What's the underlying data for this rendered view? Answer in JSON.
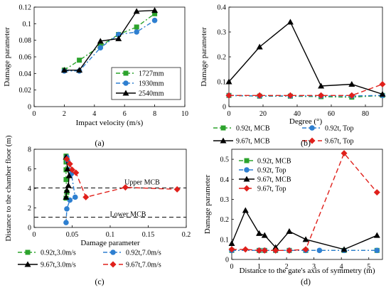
{
  "chart_data": [
    {
      "type": "line",
      "panel_label": "(a)",
      "xlabel": "Impact velocity (m/s)",
      "ylabel": "Damage parameter",
      "xlim": [
        0,
        10
      ],
      "ylim": [
        0,
        0.12
      ],
      "xticks": [
        0,
        2,
        4,
        6,
        8,
        10
      ],
      "yticks": [
        0,
        0.02,
        0.04,
        0.06,
        0.08,
        0.1,
        0.12
      ],
      "xtick_labels": [
        "0",
        "2",
        "4",
        "6",
        "8",
        "10"
      ],
      "ytick_labels": [
        "0",
        "0.02",
        "0.04",
        "0.06",
        "0.08",
        "0.1",
        "0.12"
      ],
      "legend_position": "bottom-right",
      "series": [
        {
          "name": "1727mm",
          "color": "#2ca32c",
          "marker": "square",
          "dash": "6,3,2,3",
          "x": [
            2,
            3,
            4.4,
            5.6,
            6.8,
            8
          ],
          "y": [
            0.044,
            0.056,
            0.073,
            0.087,
            0.096,
            0.112
          ]
        },
        {
          "name": "1930mm",
          "color": "#2e7fd0",
          "marker": "circle",
          "dash": "6,3,2,3",
          "x": [
            2,
            3,
            4.4,
            5.6,
            6.8,
            8
          ],
          "y": [
            0.043,
            0.043,
            0.071,
            0.087,
            0.09,
            0.104
          ]
        },
        {
          "name": "2540mm",
          "color": "#000000",
          "marker": "triangle",
          "dash": "",
          "x": [
            2,
            3,
            4.4,
            5.6,
            6.8,
            8
          ],
          "y": [
            0.044,
            0.044,
            0.079,
            0.082,
            0.115,
            0.116
          ]
        }
      ]
    },
    {
      "type": "line",
      "panel_label": "(b)",
      "xlabel": "Degree (°)",
      "ylabel": "Damage parameter",
      "xlim": [
        0,
        90
      ],
      "ylim": [
        0,
        0.4
      ],
      "xticks": [
        0,
        20,
        40,
        60,
        80
      ],
      "yticks": [
        0,
        0.1,
        0.2,
        0.3,
        0.4
      ],
      "xtick_labels": [
        "0",
        "20",
        "40",
        "60",
        "80"
      ],
      "ytick_labels": [
        "0",
        "0.1",
        "0.2",
        "0.3",
        "0.4"
      ],
      "legend_position": "below",
      "series": [
        {
          "name": "0.92t, MCB",
          "color": "#2ca32c",
          "marker": "square",
          "dash": "6,3,2,3",
          "x": [
            0,
            18,
            36,
            54,
            72,
            90
          ],
          "y": [
            0.045,
            0.042,
            0.042,
            0.04,
            0.038,
            0.045
          ]
        },
        {
          "name": "0.92t, Top",
          "color": "#2e7fd0",
          "marker": "circle",
          "dash": "6,3,2,3",
          "x": [
            0,
            18,
            36,
            54,
            72,
            90
          ],
          "y": [
            0.045,
            0.043,
            0.043,
            0.043,
            0.043,
            0.045
          ]
        },
        {
          "name": "9.67t, MCB",
          "color": "#000000",
          "marker": "triangle",
          "dash": "",
          "x": [
            0,
            18,
            36,
            54,
            72,
            90
          ],
          "y": [
            0.1,
            0.24,
            0.34,
            0.083,
            0.09,
            0.05
          ]
        },
        {
          "name": "9.67t, Top",
          "color": "#e0201b",
          "marker": "diamond",
          "dash": "7,4",
          "x": [
            0,
            18,
            36,
            54,
            72,
            90
          ],
          "y": [
            0.045,
            0.045,
            0.045,
            0.045,
            0.045,
            0.09
          ]
        }
      ]
    },
    {
      "type": "line",
      "panel_label": "(c)",
      "xlabel": "Damage parameter",
      "ylabel": "Distance to the chamber floor (m)",
      "xlim": [
        0,
        0.2
      ],
      "ylim": [
        0,
        8
      ],
      "xticks": [
        0,
        0.05,
        0.1,
        0.15,
        0.2
      ],
      "yticks": [
        0,
        2,
        4,
        6,
        8
      ],
      "xtick_labels": [
        "0",
        "0.05",
        "0.1",
        "0.15",
        "0.2"
      ],
      "ytick_labels": [
        "0",
        "2",
        "4",
        "6",
        "8"
      ],
      "legend_position": "below",
      "reference_lines": [
        {
          "label": "Upper MCB",
          "y": 4.05
        },
        {
          "label": "Lower MCB",
          "y": 1.05
        }
      ],
      "series": [
        {
          "name": "0.92t,3.0m/s",
          "color": "#2ca32c",
          "marker": "square",
          "dash": "6,3,2,3",
          "x": [
            0.042,
            0.042,
            0.042,
            0.042,
            0.043,
            0.042
          ],
          "y": [
            7.3,
            6.7,
            5.9,
            4.9,
            3.6,
            3.0
          ]
        },
        {
          "name": "0.92t,7.0m/s",
          "color": "#2e7fd0",
          "marker": "circle",
          "dash": "6,3,2,3",
          "x": [
            0.043,
            0.044,
            0.049,
            0.054,
            0.047,
            0.043,
            0.042
          ],
          "y": [
            7.2,
            6.8,
            5.5,
            3.1,
            2.8,
            1.9,
            0.5
          ]
        },
        {
          "name": "9.67t,3.0m/s",
          "color": "#000000",
          "marker": "triangle",
          "dash": "",
          "x": [
            0.042,
            0.044,
            0.046,
            0.045,
            0.043,
            0.042
          ],
          "y": [
            7.2,
            6.0,
            5.3,
            4.3,
            3.8,
            3.1
          ]
        },
        {
          "name": "9.67t,7.0m/s",
          "color": "#e0201b",
          "marker": "diamond",
          "dash": "7,4",
          "x": [
            0.043,
            0.047,
            0.05,
            0.055,
            0.068,
            0.12,
            0.188
          ],
          "y": [
            7.0,
            6.5,
            5.9,
            5.6,
            3.1,
            4.1,
            3.9
          ]
        }
      ]
    },
    {
      "type": "line",
      "panel_label": "(d)",
      "xlabel": "Distance to the gate's axis of symmetry (m)",
      "ylabel": "Damage parameter",
      "xlim": [
        0,
        5.5
      ],
      "ylim": [
        0,
        0.55
      ],
      "xticks": [
        0,
        1,
        2,
        3,
        4,
        5
      ],
      "yticks": [
        0,
        0.1,
        0.2,
        0.3,
        0.4,
        0.5
      ],
      "xtick_labels": [
        "0",
        "1",
        "2",
        "3",
        "4",
        "5"
      ],
      "ytick_labels": [
        "0",
        "0.1",
        "0.2",
        "0.3",
        "0.4",
        "0.5"
      ],
      "legend_position": "top-left",
      "series": [
        {
          "name": "0.92t, MCB",
          "color": "#2ca32c",
          "marker": "square",
          "dash": "6,3,2,3",
          "x": [
            0,
            1.0,
            1.2,
            1.6,
            2.1,
            2.7,
            4.1,
            5.3
          ],
          "y": [
            0.045,
            0.045,
            0.045,
            0.045,
            0.045,
            0.045,
            0.045,
            0.045
          ]
        },
        {
          "name": "0.92t, Top",
          "color": "#2e7fd0",
          "marker": "circle",
          "dash": "6,3,2,3",
          "x": [
            0,
            1.0,
            1.2,
            1.6,
            2.1,
            2.7,
            3.2,
            4.1,
            5.3
          ],
          "y": [
            0.045,
            0.045,
            0.045,
            0.045,
            0.045,
            0.045,
            0.045,
            0.045,
            0.045
          ]
        },
        {
          "name": "9.67t, MCB",
          "color": "#000000",
          "marker": "triangle",
          "dash": "",
          "x": [
            0,
            0.5,
            1.0,
            1.2,
            1.6,
            2.1,
            2.7,
            4.1,
            5.3
          ],
          "y": [
            0.08,
            0.245,
            0.13,
            0.12,
            0.06,
            0.14,
            0.1,
            0.05,
            0.12
          ]
        },
        {
          "name": "9.67t, Top",
          "color": "#e0201b",
          "marker": "diamond",
          "dash": "7,4",
          "x": [
            0,
            0.5,
            1.0,
            1.2,
            1.6,
            2.1,
            2.7,
            4.1,
            5.3
          ],
          "y": [
            0.05,
            0.05,
            0.045,
            0.045,
            0.045,
            0.045,
            0.05,
            0.53,
            0.335
          ]
        }
      ]
    }
  ]
}
